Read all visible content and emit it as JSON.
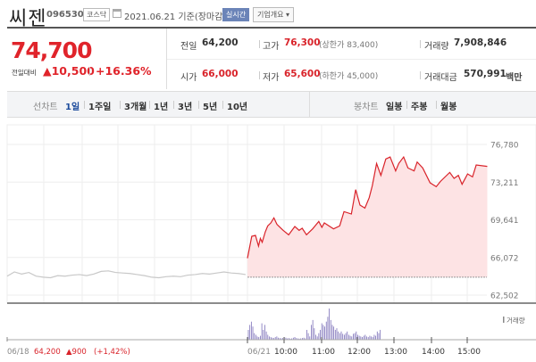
{
  "header": {
    "name": "씨젠",
    "code": "096530",
    "market": "코스닥",
    "date": "2021.06.21 기준(장마감)",
    "realtime": "실시간",
    "company_info": "기업개요 ▾"
  },
  "quote": {
    "price": "74,700",
    "diff_label": "전일대비",
    "diff": "▲10,500",
    "rate": "+16.36%",
    "prev_label": "전일",
    "prev": "64,200",
    "open_label": "시가",
    "open": "66,000",
    "high_label": "고가",
    "high": "76,300",
    "upper_limit": "(상한가 83,400)",
    "low_label": "저가",
    "low": "65,600",
    "lower_limit": "(하한가 45,000)",
    "volume_label": "거래량",
    "volume": "7,908,846",
    "amount_label": "거래대금",
    "amount": "570,991",
    "amount_unit": "백만"
  },
  "tabs": {
    "line_label": "선차트",
    "line": [
      "1일",
      "1주일",
      "3개월",
      "1년",
      "3년",
      "5년",
      "10년"
    ],
    "active": "1일",
    "candle_label": "봉차트",
    "candle": [
      "일봉",
      "주봉",
      "월봉"
    ]
  },
  "colors": {
    "up": "#d9232a",
    "fill": "#fde3e4",
    "prev_line": "#c8c8c8",
    "volume": "#7b6fb8",
    "active_tab": "#1c4b9c"
  },
  "chart_data": {
    "type": "line",
    "y_ticks": [
      "76,780",
      "73,211",
      "69,641",
      "66,072",
      "62,502"
    ],
    "ylim": [
      62502,
      76780
    ],
    "prev_close": 64200,
    "x_labels": [
      "06/21",
      "10:00",
      "11:00",
      "12:00",
      "13:00",
      "14:00",
      "15:00"
    ],
    "prev_day": {
      "label": "06/18",
      "close": "64,200",
      "change": "▲900",
      "rate": "(+1,42%)",
      "values": [
        64300,
        64700,
        64500,
        64650,
        64300,
        64200,
        64150,
        64350,
        64300,
        64400,
        64450,
        64350,
        64500,
        64750,
        64800,
        64650,
        64600,
        64550,
        64450,
        64350,
        64200,
        64150,
        64250,
        64300,
        64250,
        64400,
        64450,
        64550,
        64500,
        64600,
        64700,
        64600,
        64550,
        64450
      ]
    },
    "series": {
      "times": [
        "09:00",
        "09:07",
        "09:13",
        "09:18",
        "09:21",
        "09:24",
        "09:29",
        "09:33",
        "09:38",
        "09:43",
        "09:48",
        "09:58",
        "10:07",
        "10:17",
        "10:24",
        "10:29",
        "10:36",
        "10:46",
        "10:56",
        "11:01",
        "11:05",
        "11:20",
        "11:30",
        "11:37",
        "11:49",
        "11:56",
        "12:03",
        "12:11",
        "12:18",
        "12:23",
        "12:30",
        "12:37",
        "12:45",
        "12:52",
        "13:01",
        "13:06",
        "13:14",
        "13:21",
        "13:31",
        "13:36",
        "13:45",
        "13:57",
        "14:07",
        "14:14",
        "14:29",
        "14:36",
        "14:43",
        "14:49",
        "14:58",
        "15:06",
        "15:12",
        "15:30"
      ],
      "values": [
        66000,
        68076,
        68161,
        67147,
        67879,
        67514,
        68499,
        69062,
        69343,
        69822,
        69203,
        68640,
        68217,
        69006,
        68640,
        68837,
        68217,
        68780,
        69484,
        68921,
        69343,
        68780,
        69062,
        70414,
        70188,
        72498,
        71033,
        70751,
        71738,
        72864,
        74975,
        73848,
        75398,
        75593,
        74270,
        74975,
        75593,
        74552,
        74270,
        75115,
        74552,
        73144,
        72780,
        73286,
        74130,
        73566,
        73848,
        73004,
        73989,
        73707,
        74833,
        74700
      ]
    },
    "volume_label": "거래량",
    "volume": [
      30,
      45,
      55,
      40,
      20,
      15,
      10,
      8,
      12,
      50,
      30,
      45,
      25,
      15,
      10,
      8,
      6,
      5,
      8,
      10,
      6,
      5,
      4,
      5,
      8,
      6,
      4,
      5,
      3,
      4,
      6,
      8,
      5,
      4,
      3,
      4,
      5,
      6,
      4,
      30,
      20,
      10,
      45,
      60,
      35,
      15,
      10,
      20,
      30,
      50,
      45,
      40,
      55,
      70,
      95,
      60,
      45,
      40,
      30,
      35,
      25,
      20,
      25,
      18,
      15,
      20,
      25,
      15,
      12,
      10,
      18,
      20,
      25,
      15,
      12,
      10,
      8,
      12,
      15,
      10,
      8,
      12,
      10,
      8,
      15,
      12,
      25,
      20,
      30
    ]
  }
}
